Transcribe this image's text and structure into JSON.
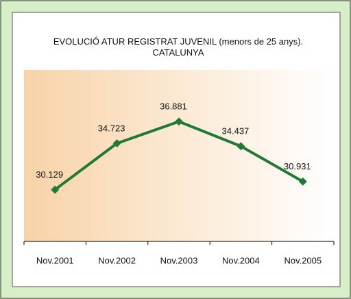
{
  "chart_data": {
    "type": "line",
    "title": "EVOLUCIÓ ATUR REGISTRAT JUVENIL (menors de 25 anys). CATALUNYA",
    "categories": [
      "Nov.2001",
      "Nov.2002",
      "Nov.2003",
      "Nov.2004",
      "Nov.2005"
    ],
    "values": [
      30129,
      34723,
      36881,
      34437,
      30931
    ],
    "value_labels": [
      "30.129",
      "34.723",
      "36.881",
      "34.437",
      "30.931"
    ],
    "color": "#1f7a35",
    "ylim": [
      25000,
      42000
    ],
    "grid": false
  }
}
